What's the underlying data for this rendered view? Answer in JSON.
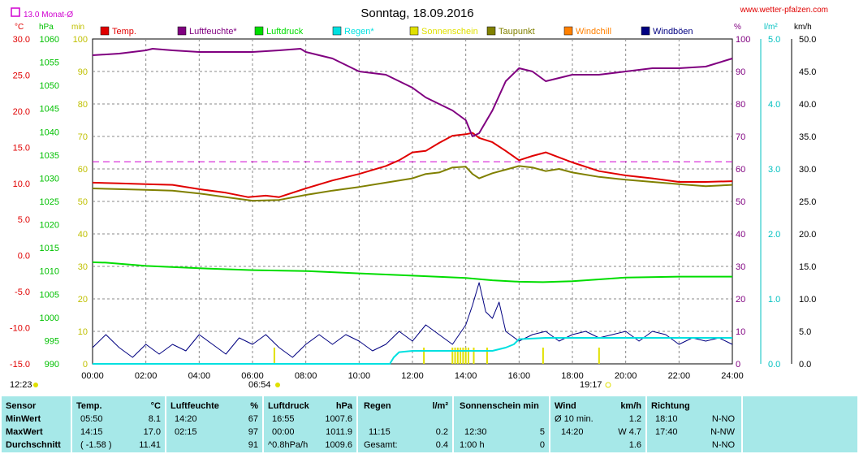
{
  "header": {
    "title": "Sonntag, 18.09.2016",
    "website": "www.wetter-pfalzen.com",
    "monthly_avg_label": "13.0 Monat-Ø",
    "times_left": "12:23",
    "sunrise": "06:54",
    "sunset": "19:17"
  },
  "axis_headers": {
    "celsius": "°C",
    "hpa": "hPa",
    "min": "min",
    "percent": "%",
    "lm2": "l/m²",
    "kmh": "km/h"
  },
  "legend": [
    {
      "label": "Temp.",
      "color": "#e00000"
    },
    {
      "label": "Luftfeuchte*",
      "color": "#800080"
    },
    {
      "label": "Luftdruck",
      "color": "#00dd00"
    },
    {
      "label": "Regen*",
      "color": "#00e0e0"
    },
    {
      "label": "Sonnenschein",
      "color": "#e0e000"
    },
    {
      "label": "Taupunkt",
      "color": "#808000"
    },
    {
      "label": "Windchill",
      "color": "#ff8000"
    },
    {
      "label": "Windböen",
      "color": "#000080"
    }
  ],
  "chart_data": {
    "type": "line",
    "x_ticks": [
      "00:00",
      "02:00",
      "04:00",
      "06:00",
      "08:00",
      "10:00",
      "12:00",
      "14:00",
      "16:00",
      "18:00",
      "20:00",
      "22:00",
      "24:00"
    ],
    "y_axes": {
      "temperature_c": {
        "ticks": [
          "30.0",
          "25.0",
          "20.0",
          "15.0",
          "10.0",
          "5.0",
          "0.0",
          "-5.0",
          "-10.0",
          "-15.0"
        ],
        "range": [
          -15,
          30
        ],
        "color": "#e00000"
      },
      "pressure_hpa": {
        "ticks": [
          "1060",
          "1055",
          "1050",
          "1045",
          "1040",
          "1035",
          "1030",
          "1025",
          "1020",
          "1015",
          "1010",
          "1005",
          "1000",
          "995",
          "990"
        ],
        "range": [
          990,
          1060
        ],
        "color": "#00c000"
      },
      "minutes": {
        "ticks": [
          "100",
          "90",
          "80",
          "70",
          "60",
          "50",
          "40",
          "30",
          "20",
          "10",
          "0"
        ],
        "range": [
          0,
          100
        ],
        "color": "#c0c000"
      },
      "humidity_pct": {
        "ticks": [
          "100",
          "90",
          "80",
          "70",
          "60",
          "50",
          "40",
          "30",
          "20",
          "10",
          "0"
        ],
        "range": [
          0,
          100
        ],
        "color": "#800080"
      },
      "rain_lm2": {
        "ticks": [
          "5.0",
          "4.0",
          "3.0",
          "2.0",
          "1.0",
          "0.0"
        ],
        "range": [
          0,
          5
        ],
        "color": "#00c0c0"
      },
      "wind_kmh": {
        "ticks": [
          "50.0",
          "45.0",
          "40.0",
          "35.0",
          "30.0",
          "25.0",
          "20.0",
          "15.0",
          "10.0",
          "5.0",
          "0.0"
        ],
        "range": [
          0,
          50
        ],
        "color": "#000000"
      }
    },
    "monthly_avg_temp": 13.0,
    "series": [
      {
        "name": "Temp.",
        "axis": "temperature_c",
        "color": "#e00000",
        "x": [
          0,
          1,
          2,
          3,
          4,
          5,
          5.83,
          6.5,
          7,
          8,
          9,
          10,
          11,
          11.5,
          12,
          12.5,
          13,
          13.5,
          14,
          14.25,
          14.5,
          15,
          15.5,
          16,
          16.5,
          17,
          17.5,
          18,
          19,
          20,
          21,
          22,
          23,
          24
        ],
        "y": [
          10.1,
          10.0,
          9.9,
          9.8,
          9.2,
          8.7,
          8.1,
          8.3,
          8.1,
          9.3,
          10.4,
          11.3,
          12.4,
          13.2,
          14.3,
          14.5,
          15.6,
          16.6,
          16.8,
          17.0,
          16.3,
          15.7,
          14.5,
          13.2,
          13.8,
          14.3,
          13.6,
          12.9,
          11.7,
          11.1,
          10.7,
          10.2,
          10.2,
          10.3
        ]
      },
      {
        "name": "Luftfeuchte*",
        "axis": "humidity_pct",
        "color": "#800080",
        "x": [
          0,
          1,
          2,
          2.25,
          3,
          4,
          5,
          6,
          7,
          7.8,
          8,
          9,
          10,
          11,
          11.5,
          12,
          12.5,
          13,
          13.5,
          14,
          14.25,
          14.5,
          15,
          15.5,
          16,
          16.5,
          17,
          17.5,
          18,
          19,
          20,
          21,
          22,
          23,
          24
        ],
        "y": [
          95,
          95.5,
          96.5,
          97,
          96.5,
          96,
          96,
          96,
          96.5,
          97,
          96,
          94,
          90,
          89,
          87,
          85,
          82,
          80,
          78,
          75,
          70,
          71,
          78,
          87,
          91,
          90,
          87,
          88,
          89,
          89,
          90,
          91,
          91,
          91.5,
          94
        ]
      },
      {
        "name": "Luftdruck",
        "axis": "pressure_hpa",
        "color": "#00dd00",
        "x": [
          0,
          0.5,
          2,
          4,
          6,
          8,
          10,
          12,
          14,
          15,
          16,
          16.9,
          18,
          19,
          20,
          22,
          24
        ],
        "y": [
          1011.9,
          1011.8,
          1011.1,
          1010.6,
          1010.2,
          1010.0,
          1009.5,
          1009.0,
          1008.5,
          1008.0,
          1007.7,
          1007.6,
          1007.8,
          1008.2,
          1008.6,
          1008.8,
          1008.8
        ]
      },
      {
        "name": "Taupunkt",
        "axis": "temperature_c",
        "color": "#808000",
        "x": [
          0,
          1,
          2,
          3,
          4,
          5,
          6,
          7,
          8,
          9,
          10,
          11,
          12,
          12.5,
          13,
          13.5,
          14,
          14.25,
          14.5,
          15,
          15.5,
          16,
          16.5,
          17,
          17.5,
          18,
          19,
          20,
          21,
          22,
          23,
          24
        ],
        "y": [
          9.3,
          9.2,
          9.1,
          9.0,
          8.6,
          8.1,
          7.6,
          7.7,
          8.4,
          9.0,
          9.5,
          10.1,
          10.7,
          11.3,
          11.5,
          12.2,
          12.3,
          11.3,
          10.7,
          11.4,
          11.9,
          12.4,
          12.2,
          11.7,
          12.0,
          11.5,
          10.9,
          10.5,
          10.2,
          9.9,
          9.6,
          9.8
        ]
      },
      {
        "name": "Windböen",
        "axis": "wind_kmh",
        "color": "#000080",
        "x": [
          0,
          0.5,
          1,
          1.5,
          2,
          2.5,
          3,
          3.5,
          4,
          4.5,
          5,
          5.5,
          6,
          6.5,
          7,
          7.5,
          8,
          8.5,
          9,
          9.5,
          10,
          10.5,
          11,
          11.5,
          12,
          12.5,
          13,
          13.5,
          14,
          14.25,
          14.5,
          14.75,
          15,
          15.25,
          15.5,
          16,
          16.5,
          17,
          17.5,
          18,
          18.5,
          19,
          19.5,
          20,
          20.5,
          21,
          21.5,
          22,
          22.5,
          23,
          23.5,
          24
        ],
        "y": [
          2.5,
          4.5,
          2.5,
          1.0,
          3.0,
          1.5,
          3.0,
          2.0,
          4.5,
          3.0,
          1.5,
          4.0,
          3.0,
          4.5,
          2.5,
          1.0,
          3.0,
          4.5,
          3.0,
          4.5,
          3.5,
          2.0,
          3.0,
          5.0,
          3.5,
          6.0,
          4.5,
          3.0,
          6.0,
          9.0,
          12.5,
          8.0,
          7.0,
          9.5,
          5.0,
          3.5,
          4.5,
          5.0,
          3.5,
          4.5,
          5.0,
          4.0,
          4.5,
          5.0,
          3.5,
          5.0,
          4.5,
          3.0,
          4.0,
          3.5,
          4.0,
          3.0
        ]
      },
      {
        "name": "Regen*",
        "axis": "rain_lm2",
        "color": "#00e0e0",
        "x": [
          0,
          11.15,
          11.3,
          11.5,
          12,
          12.3,
          13,
          14,
          15,
          15.5,
          15.8,
          16,
          17,
          18,
          20,
          22,
          24
        ],
        "y": [
          0,
          0,
          0.1,
          0.18,
          0.2,
          0.2,
          0.2,
          0.2,
          0.2,
          0.25,
          0.3,
          0.38,
          0.4,
          0.4,
          0.4,
          0.4,
          0.4
        ]
      }
    ],
    "sunshine_minutes": {
      "x": [
        6.82,
        12.43,
        13.5,
        13.6,
        13.7,
        13.8,
        13.9,
        14.0,
        14.1,
        14.3,
        14.8,
        16.9,
        19.0
      ],
      "y": [
        5,
        5,
        5,
        5,
        5,
        5,
        5,
        5,
        5,
        5,
        5,
        5,
        5
      ]
    }
  },
  "stats": {
    "sensor": {
      "title": "Sensor",
      "rows": [
        "MinWert",
        "MaxWert",
        "Durchschnitt"
      ]
    },
    "temp": {
      "title": "Temp.",
      "unit": "°C",
      "rows": [
        [
          "05:50",
          "8.1"
        ],
        [
          "14:15",
          "17.0"
        ],
        [
          "( -1.58 )",
          "11.41"
        ]
      ]
    },
    "humidity": {
      "title": "Luftfeuchte",
      "unit": "%",
      "rows": [
        [
          "14:20",
          "67"
        ],
        [
          "02:15",
          "97"
        ],
        [
          "",
          "91"
        ]
      ]
    },
    "pressure": {
      "title": "Luftdruck",
      "unit": "hPa",
      "rows": [
        [
          "16:55",
          "1007.6"
        ],
        [
          "00:00",
          "1011.9"
        ],
        [
          "^0.8hPa/h",
          "1009.6"
        ]
      ]
    },
    "rain": {
      "title": "Regen",
      "unit": "l/m²",
      "rows": [
        [
          "",
          ""
        ],
        [
          "11:15",
          "0.2"
        ],
        [
          "Gesamt:",
          "0.4"
        ]
      ]
    },
    "sun": {
      "title": "Sonnenschein min",
      "unit": "",
      "rows": [
        [
          "",
          ""
        ],
        [
          "12:30",
          "5"
        ],
        [
          "1:00 h",
          "0"
        ]
      ]
    },
    "wind": {
      "title": "Wind",
      "unit": "km/h",
      "rows": [
        [
          "Ø 10 min.",
          "1.2"
        ],
        [
          "14:20",
          "W 4.7"
        ],
        [
          "",
          "1.6"
        ]
      ]
    },
    "direction": {
      "title": "Richtung",
      "rows": [
        [
          "18:10",
          "N-NO"
        ],
        [
          "17:40",
          "N-NW"
        ],
        [
          "",
          "N-NO"
        ]
      ]
    }
  }
}
